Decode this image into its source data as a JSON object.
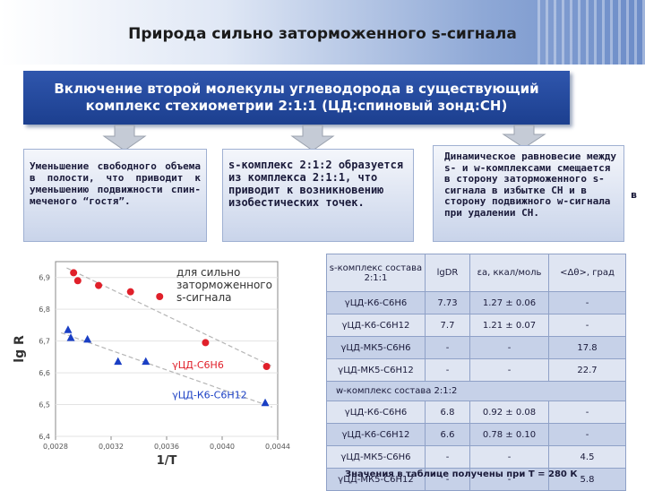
{
  "header": {
    "title": "Природа сильно заторможенного s-сигнала"
  },
  "banner": {
    "line1": "Включение второй молекулы углеводорода в существующий",
    "line2": "комплекс стехиометрии 2:1:1 (ЦД:спиновый зонд:СН)"
  },
  "boxes": {
    "left": "Уменьшение свободного объема в полости, что приводит к уменьшению подвижности спин-меченого “гостя”.",
    "middle": "s-комплекс 2:1:2 образуется из комплекса 2:1:1, что приводит к возникновению изобестических точек.",
    "right": "Динамическое равновесие между s- и w-комплексами смещается в сторону заторможенного s-сигнала в избытке СН и в сторону подвижного w-сигнала при удалении СН.",
    "stray_letter": "в"
  },
  "chart_legend_note": "для сильно заторможенного s-сигнала",
  "chart_data": {
    "type": "scatter",
    "xlabel": "1/T",
    "ylabel": "lg R",
    "xlim": [
      0.0028,
      0.0044
    ],
    "ylim": [
      6.4,
      6.95
    ],
    "xticks": [
      "0,0028",
      "0,0032",
      "0,0036",
      "0,0040",
      "0,0044"
    ],
    "yticks": [
      "6,9",
      "6,8",
      "6,7",
      "6,6",
      "6,5",
      "6,4"
    ],
    "series": [
      {
        "name": "γЦД-С6Н6",
        "color": "#e0202a",
        "marker": "circle",
        "x": [
          0.00293,
          0.00296,
          0.00311,
          0.00334,
          0.00355,
          0.00388,
          0.00432
        ],
        "y": [
          6.915,
          6.89,
          6.875,
          6.855,
          6.84,
          6.695,
          6.62
        ]
      },
      {
        "name": "γЦД-К6-С6Н12",
        "color": "#1a3fc4",
        "marker": "triangle",
        "x": [
          0.00289,
          0.00291,
          0.00303,
          0.00325,
          0.00345,
          0.00431
        ],
        "y": [
          6.735,
          6.71,
          6.705,
          6.635,
          6.635,
          6.505
        ]
      }
    ]
  },
  "table": {
    "header": [
      "s-комплекс состава 2:1:1",
      "lgDR",
      "εа, ккал/моль",
      "<Δθ>, град"
    ],
    "rows_s": [
      [
        "γЦД-К6-С6Н6",
        "7.73",
        "1.27 ± 0.06",
        "-"
      ],
      [
        "γЦД-К6-С6Н12",
        "7.7",
        "1.21 ± 0.07",
        "-"
      ],
      [
        "γЦД-МК5-С6Н6",
        "-",
        "-",
        "17.8"
      ],
      [
        "γЦД-МК5-С6Н12",
        "-",
        "-",
        "22.7"
      ]
    ],
    "w_header": "w-комплекс состава 2:1:2",
    "rows_w": [
      [
        "γЦД-К6-С6Н6",
        "6.8",
        "0.92 ± 0.08",
        "-"
      ],
      [
        "γЦД-К6-С6Н12",
        "6.6",
        "0.78 ± 0.10",
        "-"
      ],
      [
        "γЦД-МК5-С6Н6",
        "-",
        "-",
        "4.5"
      ],
      [
        "γЦД-МК5-С6Н12",
        "-",
        "-",
        "5.8"
      ]
    ]
  },
  "footnote": "Значения в таблице получены при Т = 280 К"
}
